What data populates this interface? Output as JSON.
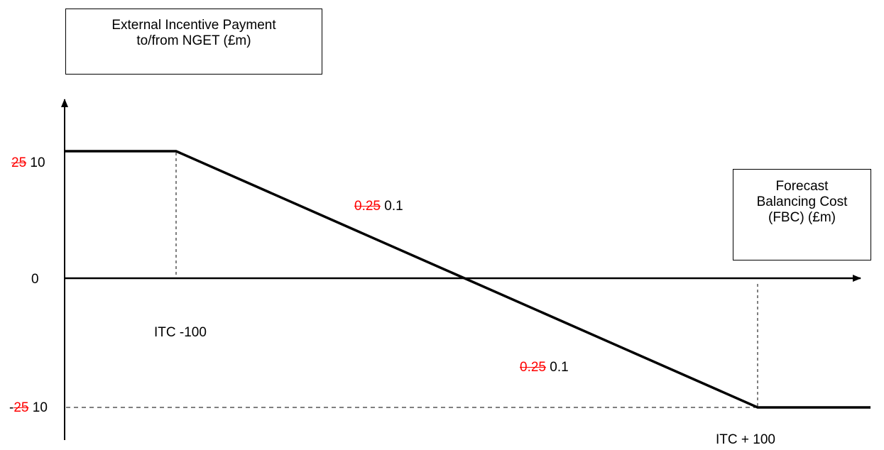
{
  "y_axis_title": {
    "line1": "External Incentive Payment",
    "line2": "to/from NGET (£m)"
  },
  "x_axis_title": {
    "line1": "Forecast",
    "line2": "Balancing Cost",
    "line3": "(FBC) (£m)"
  },
  "y_labels": {
    "top": {
      "struck": "25",
      "value": "10"
    },
    "zero": "0",
    "bottom": {
      "prefix": "-",
      "struck": "25",
      "value": "10"
    }
  },
  "x_labels": {
    "left": "ITC -100",
    "right": "ITC + 100"
  },
  "slopes": {
    "upper": {
      "struck": "0.25",
      "value": "0.1"
    },
    "lower": {
      "struck": "0.25",
      "value": "0.1"
    }
  },
  "colors": {
    "line": "#000000",
    "struck_text": "#ff0000"
  },
  "chart_data": {
    "type": "line",
    "x": [
      "min",
      "ITC -100",
      "ITC + 100",
      "max"
    ],
    "y": [
      10,
      10,
      -10,
      -10
    ],
    "cap": 10,
    "floor": -10,
    "slope": 0.1
  }
}
